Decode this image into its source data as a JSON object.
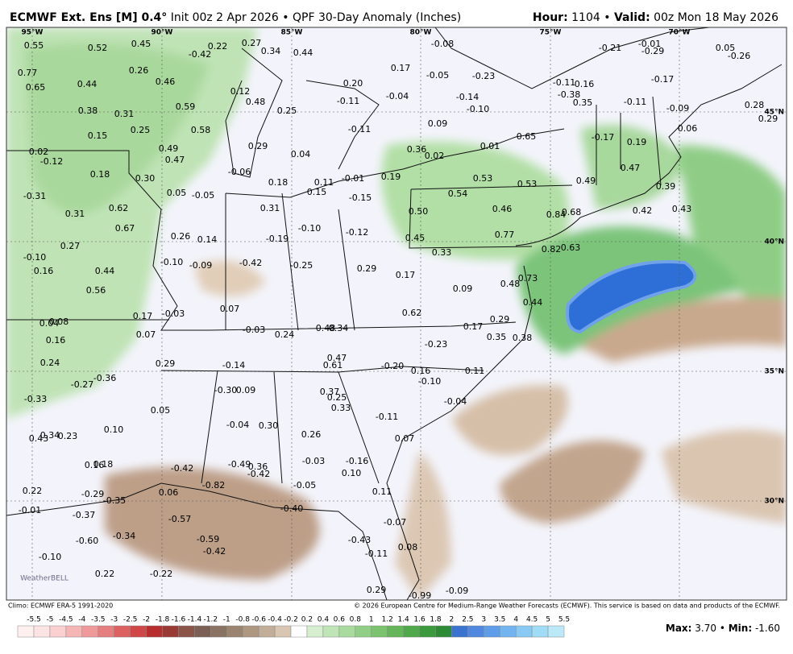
{
  "header": {
    "model": "ECMWF Ext. Ens [M] 0.4°",
    "desc": " Init 00z 2 Apr 2026 • QPF 30-Day Anomaly (Inches)",
    "hour_key": "Hour:",
    "hour_val": " 1104 • ",
    "valid_key": "Valid:",
    "valid_val": " 00z Mon 18 May 2026"
  },
  "map": {
    "lon_labels": [
      "95°W",
      "90°W",
      "85°W",
      "80°W",
      "75°W",
      "70°W"
    ],
    "lat_labels": [
      "45°N",
      "40°N",
      "35°N",
      "30°N"
    ],
    "values": [
      "0.55",
      "0.52",
      "0.45",
      "0.22",
      "0.27",
      "0.34",
      "0.44",
      "-0.08",
      "-0.21",
      "-0.01",
      "-0.29",
      "0.05",
      "-0.26",
      "0.77",
      "0.26",
      "-0.42",
      "0.17",
      "-0.05",
      "-0.23",
      "-0.17",
      "0.65",
      "0.44",
      "0.46",
      "0.20",
      "-0.11",
      "0.16",
      "0.38",
      "0.31",
      "0.59",
      "0.12",
      "0.48",
      "-0.11",
      "-0.04",
      "-0.14",
      "-0.38",
      "0.35",
      "-0.11",
      "-0.09",
      "0.28",
      "0.25",
      "-0.10",
      "0.09",
      "-0.11",
      "0.06",
      "0.29",
      "0.15",
      "0.25",
      "0.58",
      "0.65",
      "-0.17",
      "0.19",
      "0.49",
      "0.29",
      "0.04",
      "0.36",
      "0.01",
      "0.02",
      "-0.12",
      "0.47",
      "0.02",
      "0.18",
      "-0.06",
      "0.18",
      "0.11",
      "-0.01",
      "0.19",
      "0.53",
      "0.53",
      "0.49",
      "0.47",
      "0.30",
      "0.05",
      "-0.05",
      "0.15",
      "-0.15",
      "0.54",
      "0.39",
      "-0.31",
      "0.62",
      "0.31",
      "0.46",
      "0.84",
      "0.68",
      "0.42",
      "0.43",
      "0.31",
      "-0.10",
      "-0.12",
      "0.50",
      "0.77",
      "0.67",
      "0.26",
      "0.14",
      "-0.19",
      "0.45",
      "0.27",
      "0.82",
      "0.63",
      "0.33",
      "-0.10",
      "-0.10",
      "-0.09",
      "-0.42",
      "-0.25",
      "0.29",
      "0.16",
      "0.44",
      "0.17",
      "0.73",
      "0.48",
      "0.56",
      "0.09",
      "0.44",
      "0.07",
      "-0.03",
      "0.17",
      "0.62",
      "0.29",
      "0.04",
      "0.08",
      "-0.03",
      "0.24",
      "0.48",
      "0.34",
      "0.17",
      "0.07",
      "0.16",
      "0.35",
      "0.38",
      "-0.23",
      "0.47",
      "0.61",
      "-0.20",
      "0.16",
      "0.11",
      "-0.10",
      "0.24",
      "0.29",
      "-0.14",
      "-0.36",
      "-0.27",
      "-0.30",
      "0.09",
      "0.37",
      "0.25",
      "-0.04",
      "-0.33",
      "0.33",
      "0.05",
      "-0.11",
      "-0.04",
      "0.30",
      "0.10",
      "0.26",
      "0.43",
      "0.34",
      "0.23",
      "0.07",
      "0.16",
      "0.18",
      "-0.42",
      "-0.49",
      "0.36",
      "-0.42",
      "-0.03",
      "-0.16",
      "0.10",
      "-0.82",
      "-0.05",
      "0.11",
      "0.22",
      "-0.29",
      "-0.35",
      "0.06",
      "-0.01",
      "-0.37",
      "-0.40",
      "-0.57",
      "-0.07",
      "-0.60",
      "-0.34",
      "-0.59",
      "-0.43",
      "-0.42",
      "-0.11",
      "0.08",
      "-0.10",
      "0.22",
      "-0.22",
      "0.29",
      "-0.99",
      "-0.09"
    ],
    "logo": "WeatherBELL"
  },
  "footer": {
    "climo": "Climo: ECMWF ERA-5 1991-2020",
    "copyright": "© 2026 European Centre for Medium-Range Weather Forecasts (ECMWF). This service is based on data and products of the ECMWF.",
    "colorbar_labels": [
      "-5.5",
      "-5",
      "-4.5",
      "-4",
      "-3.5",
      "-3",
      "-2.5",
      "-2",
      "-1.8",
      "-1.6",
      "-1.4",
      "-1.2",
      "-1",
      "-0.8",
      "-0.6",
      "-0.4",
      "-0.2",
      "0.2",
      "0.4",
      "0.6",
      "0.8",
      "1",
      "1.2",
      "1.4",
      "1.6",
      "1.8",
      "2",
      "2.5",
      "3",
      "3.5",
      "4",
      "4.5",
      "5",
      "5.5"
    ],
    "max_key": "Max:",
    "max_val": " 3.70 • ",
    "min_key": "Min:",
    "min_val": " -1.60"
  }
}
